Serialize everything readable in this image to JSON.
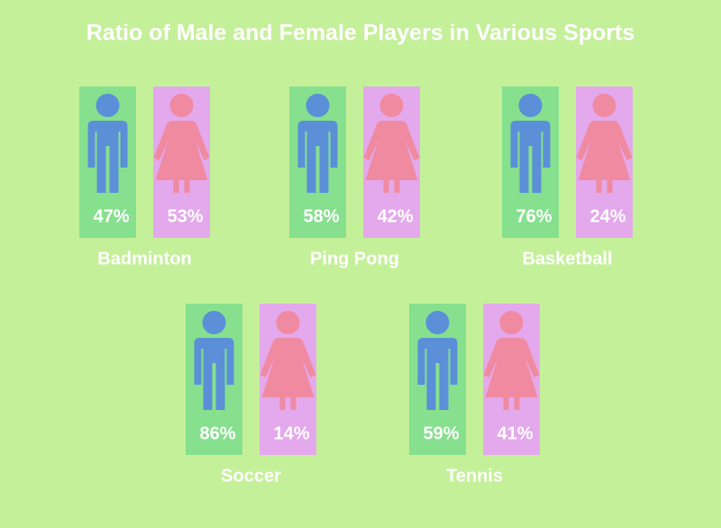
{
  "chart_data": {
    "type": "pictogram",
    "title": "Ratio of Male and Female Players in Various Sports",
    "categories": [
      "Badminton",
      "Ping Pong",
      "Basketball",
      "Soccer",
      "Tennis"
    ],
    "series": [
      {
        "color": "#5b8fd8",
        "values": [
          47,
          58,
          76,
          86,
          59
        ],
        "value_labels": [
          "47%",
          "58%",
          "76%",
          "86%",
          "59%"
        ]
      },
      {
        "color": "#f08aa0",
        "values": [
          53,
          42,
          24,
          14,
          41
        ],
        "value_labels": [
          "53%",
          "42%",
          "24%",
          "14%",
          "41%"
        ]
      }
    ]
  }
}
